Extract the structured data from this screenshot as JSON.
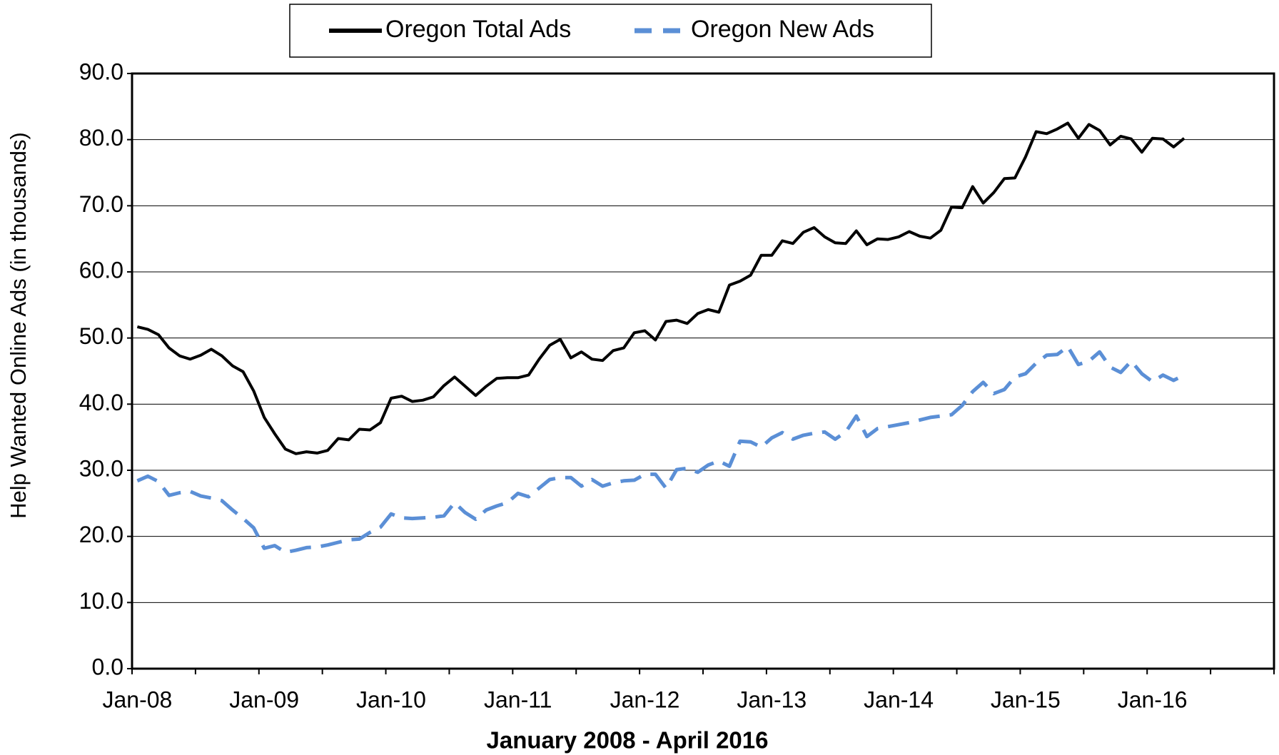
{
  "chart_data": {
    "type": "line",
    "x_label": "January 2008 - April 2016",
    "y_label": "Help Wanted Online Ads (in thousands)",
    "categories": [
      "Jan-08",
      null,
      null,
      null,
      null,
      null,
      null,
      null,
      null,
      null,
      null,
      null,
      "Jan-09",
      null,
      null,
      null,
      null,
      null,
      null,
      null,
      null,
      null,
      null,
      null,
      "Jan-10",
      null,
      null,
      null,
      null,
      null,
      null,
      null,
      null,
      null,
      null,
      null,
      "Jan-11",
      null,
      null,
      null,
      null,
      null,
      null,
      null,
      null,
      null,
      null,
      null,
      "Jan-12",
      null,
      null,
      null,
      null,
      null,
      null,
      null,
      null,
      null,
      null,
      null,
      "Jan-13",
      null,
      null,
      null,
      null,
      null,
      null,
      null,
      null,
      null,
      null,
      null,
      "Jan-14",
      null,
      null,
      null,
      null,
      null,
      null,
      null,
      null,
      null,
      null,
      null,
      "Jan-15",
      null,
      null,
      null,
      null,
      null,
      null,
      null,
      null,
      null,
      null,
      null,
      "Jan-16",
      null,
      null,
      null,
      null,
      null,
      null,
      null,
      null,
      null,
      null,
      null
    ],
    "series": [
      {
        "name": "Oregon Total Ads",
        "color": "#000000",
        "dashed": false,
        "values": [
          51.7,
          51.3,
          50.5,
          48.5,
          47.3,
          46.8,
          47.4,
          48.3,
          47.3,
          45.8,
          44.9,
          42,
          38,
          35.5,
          33.2,
          32.5,
          32.8,
          32.6,
          33,
          34.8,
          34.6,
          36.2,
          36.1,
          37.2,
          40.9,
          41.2,
          40.4,
          40.6,
          41.1,
          42.8,
          44.1,
          42.7,
          41.3,
          42.7,
          43.9,
          44,
          44,
          44.4,
          46.8,
          48.9,
          49.8,
          47,
          47.9,
          46.8,
          46.6,
          48.1,
          48.5,
          50.8,
          51.1,
          49.7,
          52.5,
          52.7,
          52.2,
          53.7,
          54.3,
          53.9,
          58,
          58.6,
          59.5,
          62.5,
          62.5,
          64.7,
          64.3,
          66,
          66.7,
          65.3,
          64.4,
          64.3,
          66.2,
          64.1,
          65,
          64.9,
          65.3,
          66.1,
          65.4,
          65.1,
          66.3,
          69.8,
          69.7,
          72.9,
          70.4,
          72,
          74.1,
          74.2,
          77.4,
          81.2,
          80.9,
          81.6,
          82.5,
          80.2,
          82.3,
          81.4,
          79.2,
          80.5,
          80.1,
          78.1,
          80.2,
          80.1,
          78.9,
          80.2,
          null,
          null,
          null,
          null,
          null,
          null,
          null,
          null
        ]
      },
      {
        "name": "Oregon New Ads",
        "color": "#5b8fd6",
        "dashed": true,
        "values": [
          28.4,
          29.1,
          28.3,
          26.2,
          26.6,
          26.8,
          26.1,
          25.8,
          25.4,
          24.0,
          22.7,
          21.3,
          18.2,
          18.6,
          17.6,
          17.9,
          18.3,
          18.4,
          18.7,
          19.1,
          19.5,
          19.6,
          20.6,
          21.4,
          23.4,
          22.8,
          22.7,
          22.8,
          22.9,
          23.1,
          25.1,
          23.6,
          22.6,
          24.0,
          24.6,
          25.1,
          26.5,
          26.0,
          27.3,
          28.6,
          28.9,
          28.9,
          27.6,
          28.6,
          27.6,
          28.1,
          28.4,
          28.5,
          29.4,
          29.4,
          27.3,
          30.1,
          30.3,
          29.7,
          30.8,
          31.4,
          30.6,
          34.4,
          34.3,
          33.5,
          34.9,
          35.7,
          34.7,
          35.3,
          35.6,
          35.8,
          34.7,
          35.8,
          38.2,
          35.1,
          36.3,
          36.6,
          36.9,
          37.2,
          37.6,
          38.0,
          38.2,
          38.4,
          39.8,
          41.9,
          43.3,
          41.6,
          42.2,
          44.1,
          44.6,
          46.2,
          47.4,
          47.5,
          48.7,
          46.0,
          46.5,
          47.9,
          45.6,
          44.8,
          46.5,
          44.6,
          43.4,
          44.4,
          43.6,
          44.4,
          null,
          null,
          null,
          null,
          null,
          null,
          null,
          null
        ]
      }
    ],
    "ylim": [
      0,
      90
    ],
    "yticks": [
      {
        "value": 0,
        "label": "0.0"
      },
      {
        "value": 10,
        "label": "10.0"
      },
      {
        "value": 20,
        "label": "20.0"
      },
      {
        "value": 30,
        "label": "30.0"
      },
      {
        "value": 40,
        "label": "40.0"
      },
      {
        "value": 50,
        "label": "50.0"
      },
      {
        "value": 60,
        "label": "60.0"
      },
      {
        "value": 70,
        "label": "70.0"
      },
      {
        "value": 80,
        "label": "80.0"
      },
      {
        "value": 90,
        "label": "90.0"
      }
    ],
    "grid": true,
    "legend": "top"
  }
}
